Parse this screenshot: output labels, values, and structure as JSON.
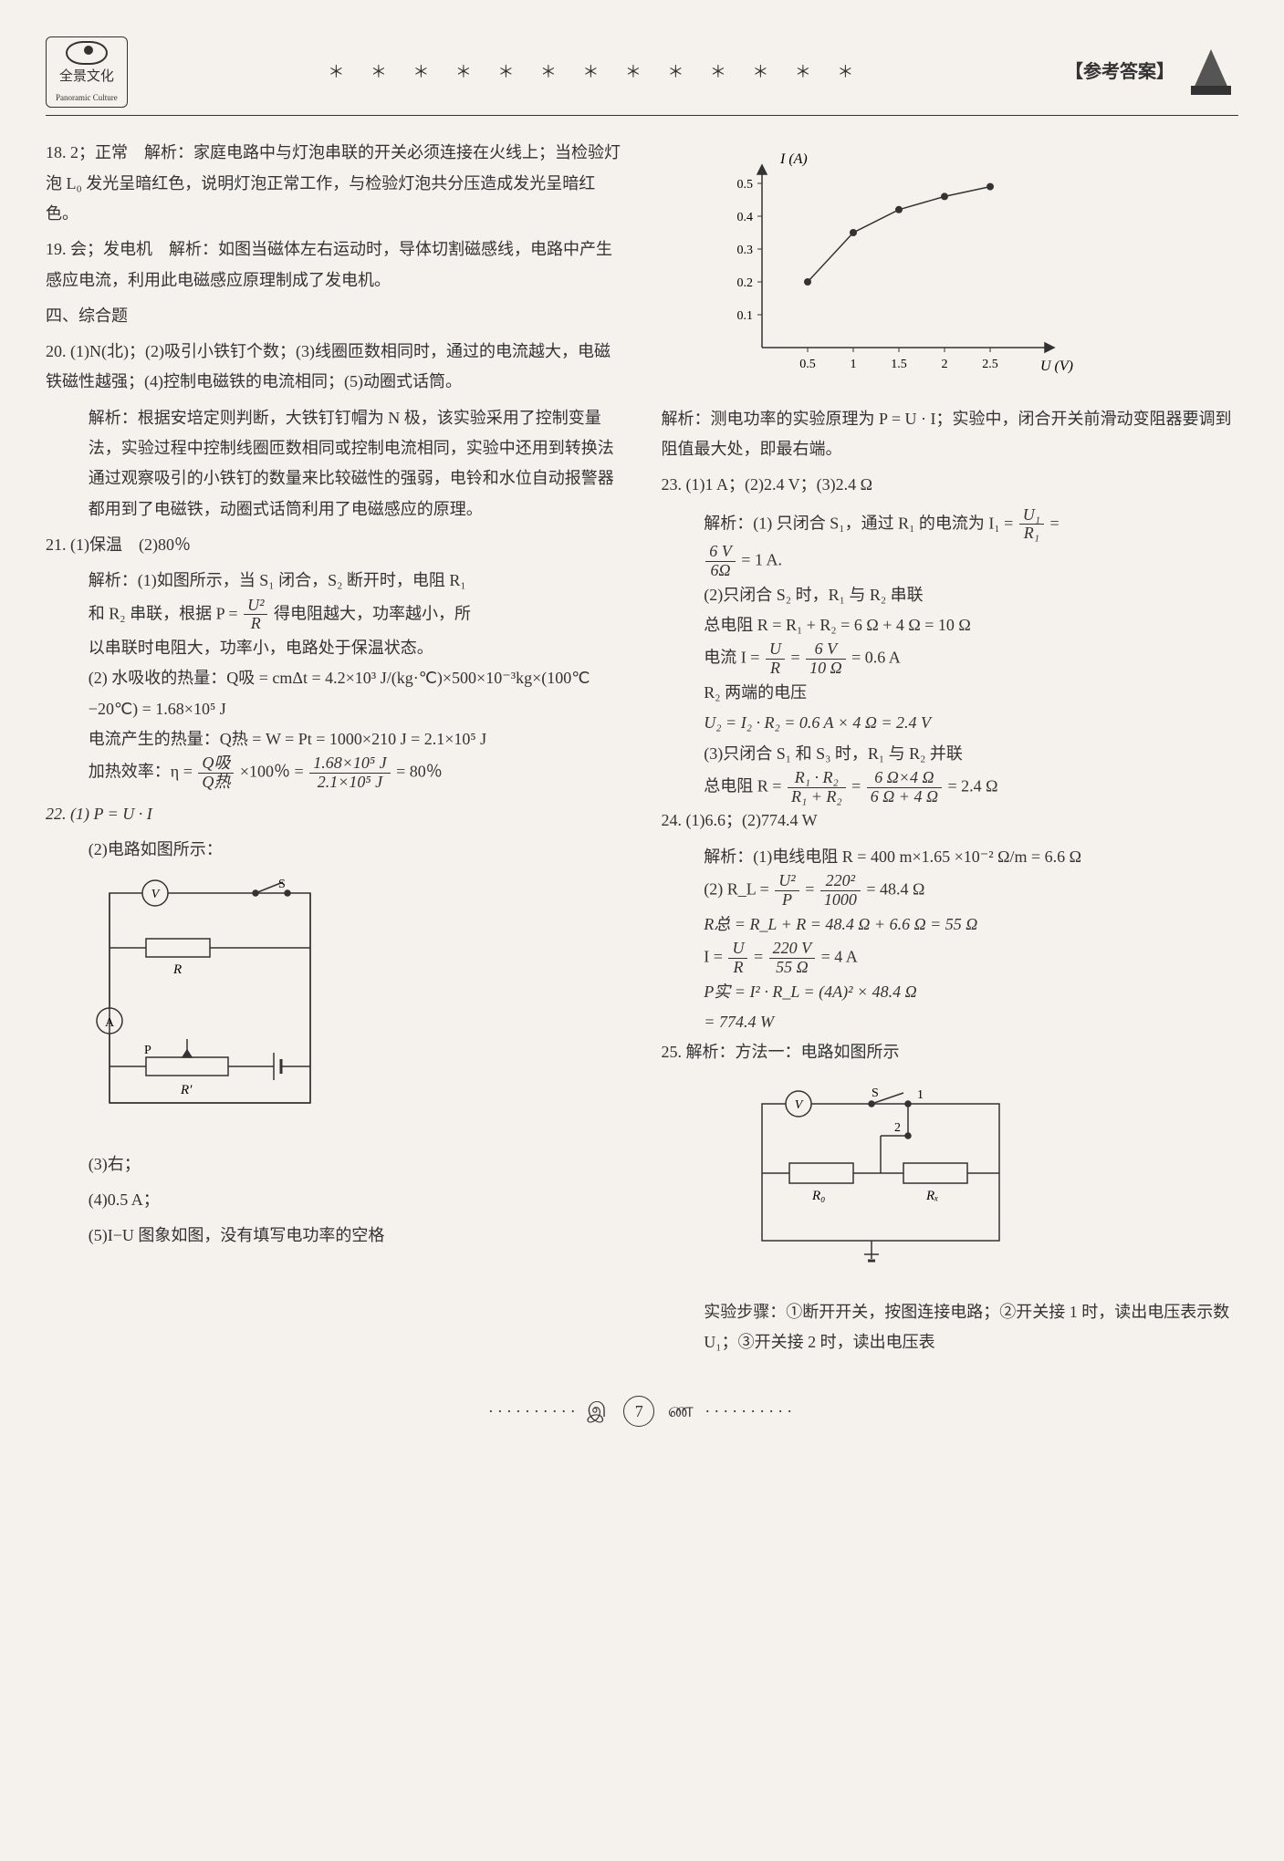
{
  "header": {
    "logo_cn": "全景文化",
    "logo_en": "Panoramic Culture",
    "stars": "＊ ＊ ＊ ＊ ＊ ＊ ＊ ＊ ＊ ＊ ＊ ＊ ＊",
    "title_right": "【参考答案】"
  },
  "left": {
    "q18": "18. 2；正常　解析：家庭电路中与灯泡串联的开关必须连接在火线上；当检验灯泡 L₀ 发光呈暗红色，说明灯泡正常工作，与检验灯泡共分压造成发光呈暗红色。",
    "q19": "19. 会；发电机　解析：如图当磁体左右运动时，导体切割磁感线，电路中产生感应电流，利用此电磁感应原理制成了发电机。",
    "sec4": "四、综合题",
    "q20": "20. (1)N(北)；(2)吸引小铁钉个数；(3)线圈匝数相同时，通过的电流越大，电磁铁磁性越强；(4)控制电磁铁的电流相同；(5)动圈式话筒。",
    "q20_exp": "解析：根据安培定则判断，大铁钉钉帽为 N 极，该实验采用了控制变量法，实验过程中控制线圈匝数相同或控制电流相同，实验中还用到转换法通过观察吸引的小铁钉的数量来比较磁性的强弱，电铃和水位自动报警器都用到了电磁铁，动圈式话筒利用了电磁感应的原理。",
    "q21": "21. (1)保温　(2)80％",
    "q21_e1a": "解析：(1)如图所示，当 S₁ 闭合，S₂ 断开时，电阻 R₁",
    "q21_e1b_a": "和 R₂ 串联，根据 P =",
    "q21_e1b_frac_num": "U²",
    "q21_e1b_frac_den": "R",
    "q21_e1b_b": "得电阻越大，功率越小，所",
    "q21_e1c": "以串联时电阻大，功率小，电路处于保温状态。",
    "q21_e2a": "(2) 水吸收的热量：Q吸 = cmΔt = 4.2×10³ J/(kg·℃)×500×10⁻³kg×(100℃−20℃) = 1.68×10⁵ J",
    "q21_e2b": "电流产生的热量：Q热 = W = Pt = 1000×210 J = 2.1×10⁵ J",
    "q21_e2c_a": "加热效率：η =",
    "q21_e2c_f1n": "Q吸",
    "q21_e2c_f1d": "Q热",
    "q21_e2c_b": "×100％ =",
    "q21_e2c_f2n": "1.68×10⁵ J",
    "q21_e2c_f2d": "2.1×10⁵ J",
    "q21_e2c_c": "= 80％",
    "q22_1": "22. (1) P = U · I",
    "q22_2": "(2)电路如图所示：",
    "q22_3": "(3)右；",
    "q22_4": "(4)0.5 A；",
    "q22_5": "(5)I−U 图象如图，没有填写电功率的空格",
    "circuit_22": {
      "V": "V",
      "S": "S",
      "R": "R",
      "A": "A",
      "P": "P",
      "Rp": "R′"
    }
  },
  "right": {
    "graph": {
      "y_label": "I (A)",
      "x_label": "U (V)",
      "x_ticks": [
        "0.5",
        "1",
        "1.5",
        "2",
        "2.5"
      ],
      "y_ticks": [
        "0.1",
        "0.2",
        "0.3",
        "0.4",
        "0.5"
      ],
      "points": [
        {
          "x": 0.5,
          "y": 0.2
        },
        {
          "x": 1.0,
          "y": 0.35
        },
        {
          "x": 1.5,
          "y": 0.42
        },
        {
          "x": 2.0,
          "y": 0.46
        },
        {
          "x": 2.5,
          "y": 0.49
        }
      ],
      "color": "#333333",
      "axis_color": "#333333"
    },
    "q22_exp": "解析：测电功率的实验原理为 P = U · I；实验中，闭合开关前滑动变阻器要调到阻值最大处，即最右端。",
    "q23": "23. (1)1 A；(2)2.4 V；(3)2.4 Ω",
    "q23_e1a": "解析：(1) 只闭合 S₁，通过 R₁ 的电流为 I₁ =",
    "q23_e1_fn": "U₁",
    "q23_e1_fd": "R₁",
    "q23_e1_eq": "=",
    "q23_e1b_fn": "6 V",
    "q23_e1b_fd": "6Ω",
    "q23_e1c": "= 1 A.",
    "q23_e2a": "(2)只闭合 S₂ 时，R₁ 与 R₂ 串联",
    "q23_e2b": "总电阻 R = R₁ + R₂ = 6 Ω + 4 Ω = 10 Ω",
    "q23_e2c_a": "电流 I =",
    "q23_e2c_f1n": "U",
    "q23_e2c_f1d": "R",
    "q23_e2c_b": "=",
    "q23_e2c_f2n": "6 V",
    "q23_e2c_f2d": "10 Ω",
    "q23_e2c_c": "= 0.6 A",
    "q23_e2d": "R₂ 两端的电压",
    "q23_e2e": "U₂ = I₂ · R₂ = 0.6 A × 4 Ω = 2.4 V",
    "q23_e3a": "(3)只闭合 S₁ 和 S₃ 时，R₁ 与 R₂ 并联",
    "q23_e3b_a": "总电阻 R =",
    "q23_e3b_f1n": "R₁ · R₂",
    "q23_e3b_f1d": "R₁ + R₂",
    "q23_e3b_b": "=",
    "q23_e3b_f2n": "6 Ω×4 Ω",
    "q23_e3b_f2d": "6 Ω + 4 Ω",
    "q23_e3b_c": "= 2.4 Ω",
    "q24": "24. (1)6.6；(2)774.4 W",
    "q24_e1": "解析：(1)电线电阻 R = 400 m×1.65 ×10⁻² Ω/m = 6.6 Ω",
    "q24_e2a_a": "(2) R_L =",
    "q24_e2a_fn": "U²",
    "q24_e2a_fd": "P",
    "q24_e2a_b": "=",
    "q24_e2b_fn": "220²",
    "q24_e2b_fd": "1000",
    "q24_e2a_c": "= 48.4 Ω",
    "q24_e2c": "R总 = R_L + R = 48.4 Ω + 6.6 Ω = 55 Ω",
    "q24_e2d_a": "I =",
    "q24_e2d_f1n": "U",
    "q24_e2d_f1d": "R",
    "q24_e2d_b": "=",
    "q24_e2d_f2n": "220 V",
    "q24_e2d_f2d": "55 Ω",
    "q24_e2d_c": "= 4 A",
    "q24_e2e": "P实 = I² · R_L = (4A)² × 48.4 Ω",
    "q24_e2f": "= 774.4 W",
    "q25": "25. 解析：方法一：电路如图所示",
    "circuit_25": {
      "V": "V",
      "S": "S",
      "n1": "1",
      "n2": "2",
      "R0": "R₀",
      "Rx": "Rₓ"
    },
    "q25_steps": "实验步骤：①断开开关，按图连接电路；②开关接 1 时，读出电压表示数 U₁；③开关接 2 时，读出电压表"
  },
  "footer": {
    "deco": "··········",
    "page": "7"
  }
}
